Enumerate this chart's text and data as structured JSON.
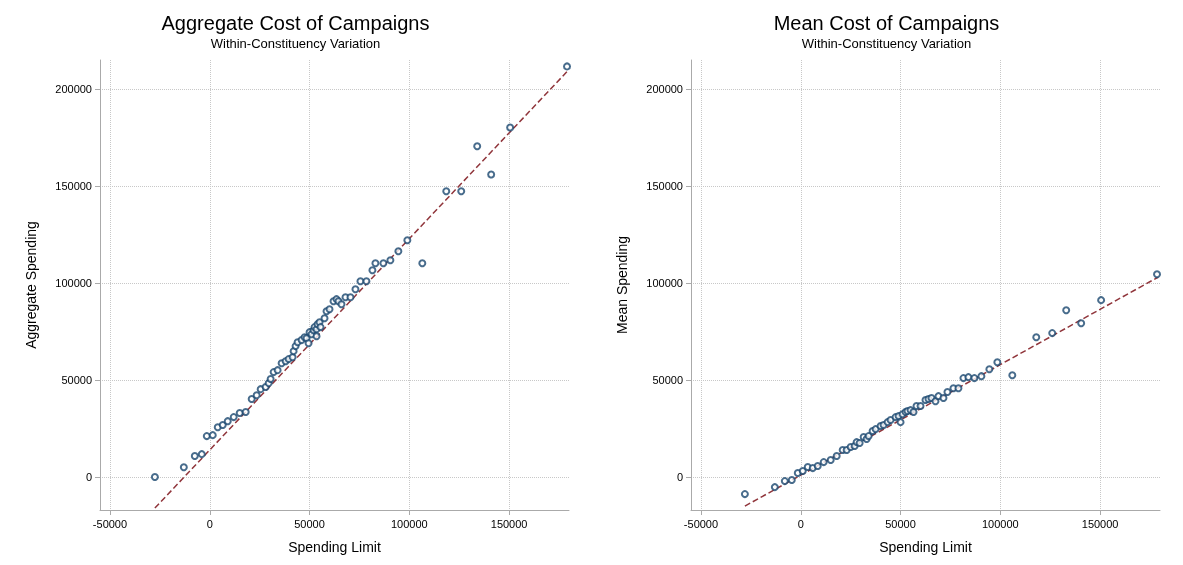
{
  "chart_data": [
    {
      "type": "scatter",
      "title": "Aggregate Cost of Campaigns",
      "subtitle": "Within-Constituency Variation",
      "xlabel": "Spending Limit",
      "ylabel": "Aggregate Spending",
      "xlim": [
        -55000,
        180000
      ],
      "ylim": [
        -17000,
        215000
      ],
      "xticks": [
        -50000,
        0,
        50000,
        100000,
        150000
      ],
      "yticks": [
        0,
        50000,
        100000,
        150000,
        200000
      ],
      "grid": true,
      "series": [
        {
          "marker": "circle",
          "color": "#1a476f",
          "x": [
            -27500,
            -13000,
            -7500,
            -4000,
            -1500,
            1500,
            4000,
            6500,
            9000,
            12000,
            15000,
            18000,
            21000,
            23500,
            25500,
            28000,
            29500,
            30500,
            32000,
            34000,
            36000,
            38000,
            39500,
            41500,
            42000,
            43000,
            44000,
            46000,
            47500,
            48500,
            50000,
            49500,
            51000,
            52000,
            52500,
            53500,
            54000,
            53500,
            55000,
            55500,
            57500,
            58500,
            60000,
            62000,
            63500,
            64500,
            66000,
            68000,
            70500,
            73000,
            75500,
            78500,
            81500,
            83000,
            87000,
            90500,
            94500,
            99000,
            106500,
            118500,
            126000,
            134000,
            141000,
            150500,
            179000
          ],
          "values": [
            0,
            5000,
            10800,
            11800,
            21100,
            21600,
            25700,
            26800,
            28800,
            30900,
            33000,
            33500,
            40200,
            42200,
            45300,
            46400,
            48400,
            50500,
            54100,
            55100,
            58700,
            59700,
            60800,
            61800,
            64900,
            67500,
            69500,
            70600,
            72100,
            71600,
            74700,
            69000,
            73600,
            75700,
            77300,
            76200,
            78800,
            72600,
            79800,
            77300,
            81900,
            85500,
            86500,
            90600,
            91700,
            90600,
            89100,
            92700,
            92700,
            96800,
            100900,
            100900,
            106600,
            110200,
            110200,
            111800,
            116400,
            122100,
            110200,
            147300,
            147300,
            170500,
            156000,
            180200,
            211700
          ]
        },
        {
          "type": "line",
          "color": "#90353b",
          "line_style": "dashed",
          "x": [
            -27500,
            179000
          ],
          "values": [
            -16000,
            209000
          ]
        }
      ]
    },
    {
      "type": "scatter",
      "title": "Mean Cost of Campaigns",
      "subtitle": "Within-Constituency Variation",
      "xlabel": "Spending Limit",
      "ylabel": "Mean Spending",
      "xlim": [
        -55000,
        180000
      ],
      "ylim": [
        -17000,
        215000
      ],
      "xticks": [
        -50000,
        0,
        50000,
        100000,
        150000
      ],
      "yticks": [
        0,
        50000,
        100000,
        150000,
        200000
      ],
      "grid": true,
      "series": [
        {
          "marker": "circle",
          "color": "#1a476f",
          "x": [
            -28000,
            -13000,
            -8000,
            -4500,
            -1500,
            1000,
            3500,
            6000,
            8500,
            11500,
            15000,
            18000,
            21000,
            23000,
            25000,
            27000,
            28000,
            29500,
            31500,
            33000,
            34000,
            36000,
            37500,
            40000,
            41500,
            43500,
            45000,
            47500,
            49000,
            50000,
            51000,
            52500,
            53500,
            55000,
            56500,
            58000,
            60000,
            62500,
            64000,
            65500,
            67500,
            69000,
            71500,
            73500,
            76500,
            79000,
            81500,
            84000,
            87000,
            90500,
            94500,
            98500,
            106000,
            118000,
            126000,
            133000,
            140500,
            150500,
            178500
          ],
          "values": [
            -8800,
            -5200,
            -2100,
            -1500,
            2100,
            3100,
            5200,
            4600,
            5700,
            7700,
            8800,
            10800,
            13900,
            13900,
            15500,
            16000,
            18000,
            17500,
            20600,
            19600,
            21100,
            23700,
            24700,
            26300,
            26800,
            28300,
            29400,
            30900,
            31400,
            28300,
            32400,
            33500,
            34000,
            34500,
            33500,
            36600,
            36600,
            39700,
            40200,
            40700,
            39100,
            41700,
            40700,
            43800,
            45800,
            45800,
            51000,
            51500,
            51000,
            52000,
            55600,
            59200,
            52500,
            72100,
            74200,
            86000,
            79300,
            91200,
            104500
          ]
        },
        {
          "type": "line",
          "color": "#90353b",
          "line_style": "dashed",
          "x": [
            -28000,
            179000
          ],
          "values": [
            -15000,
            103000
          ]
        }
      ]
    }
  ]
}
